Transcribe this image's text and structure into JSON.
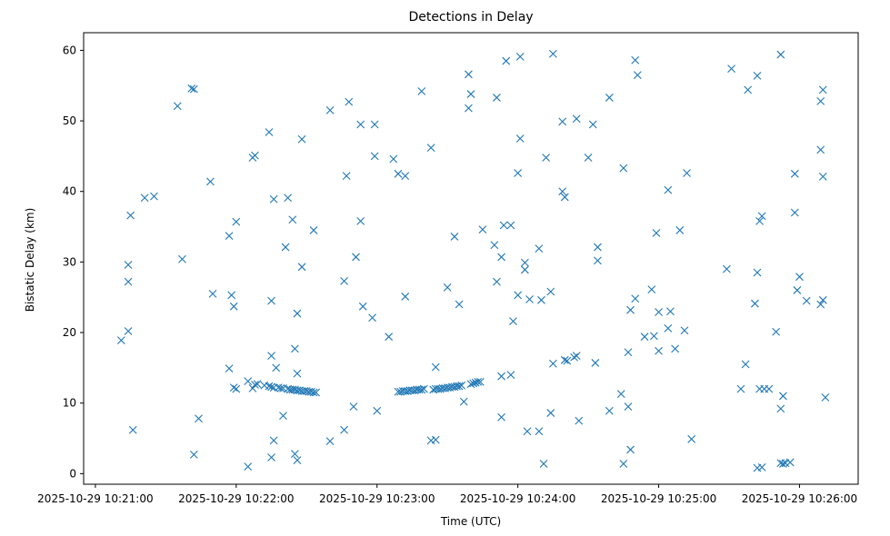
{
  "chart_data": {
    "type": "scatter",
    "title": "Detections in Delay",
    "xlabel": "Time (UTC)",
    "ylabel": "Bistatic Delay (km)",
    "marker": "x",
    "color": "#1f77b4",
    "grid": false,
    "legend": "none",
    "xlim": [
      "2025-10-29 10:20:55",
      "2025-10-29 10:26:25"
    ],
    "ylim": [
      -1.5,
      62.5
    ],
    "x_ticks": [
      "2025-10-29 10:21:00",
      "2025-10-29 10:22:00",
      "2025-10-29 10:23:00",
      "2025-10-29 10:24:00",
      "2025-10-29 10:25:00",
      "2025-10-29 10:26:00"
    ],
    "y_ticks": [
      0,
      10,
      20,
      30,
      40,
      50,
      60
    ],
    "points": [
      [
        "10:21:11",
        18.9
      ],
      [
        "10:21:14",
        29.6
      ],
      [
        "10:21:14",
        27.2
      ],
      [
        "10:21:14",
        20.2
      ],
      [
        "10:21:15",
        36.6
      ],
      [
        "10:21:16",
        6.2
      ],
      [
        "10:21:21",
        39.1
      ],
      [
        "10:21:25",
        39.3
      ],
      [
        "10:21:35",
        52.1
      ],
      [
        "10:21:37",
        30.4
      ],
      [
        "10:21:41",
        54.6
      ],
      [
        "10:21:42",
        54.5
      ],
      [
        "10:21:42",
        2.7
      ],
      [
        "10:21:44",
        7.8
      ],
      [
        "10:21:49",
        41.4
      ],
      [
        "10:21:50",
        25.5
      ],
      [
        "10:21:57",
        14.9
      ],
      [
        "10:21:57",
        33.7
      ],
      [
        "10:21:58",
        25.3
      ],
      [
        "10:21:59",
        23.7
      ],
      [
        "10:21:59",
        12.2
      ],
      [
        "10:22:00",
        35.7
      ],
      [
        "10:22:00",
        12.0
      ],
      [
        "10:22:05",
        1.0
      ],
      [
        "10:22:05",
        13.1
      ],
      [
        "10:22:07",
        44.8
      ],
      [
        "10:22:07",
        12.1
      ],
      [
        "10:22:08",
        45.1
      ],
      [
        "10:22:08",
        12.6
      ],
      [
        "10:22:09",
        12.7
      ],
      [
        "10:22:12",
        12.5
      ],
      [
        "10:22:14",
        48.4
      ],
      [
        "10:22:14",
        12.4
      ],
      [
        "10:22:15",
        24.5
      ],
      [
        "10:22:15",
        16.7
      ],
      [
        "10:22:15",
        2.3
      ],
      [
        "10:22:15",
        12.3
      ],
      [
        "10:22:16",
        38.9
      ],
      [
        "10:22:16",
        4.7
      ],
      [
        "10:22:16",
        12.2
      ],
      [
        "10:22:17",
        15.0
      ],
      [
        "10:22:18",
        12.2
      ],
      [
        "10:22:19",
        12.1
      ],
      [
        "10:22:20",
        8.2
      ],
      [
        "10:22:20",
        12.1
      ],
      [
        "10:22:21",
        32.1
      ],
      [
        "10:22:22",
        39.1
      ],
      [
        "10:22:22",
        12.0
      ],
      [
        "10:22:23",
        11.9
      ],
      [
        "10:22:24",
        36.0
      ],
      [
        "10:22:24",
        11.9
      ],
      [
        "10:22:25",
        17.7
      ],
      [
        "10:22:25",
        2.8
      ],
      [
        "10:22:25",
        11.9
      ],
      [
        "10:22:26",
        22.7
      ],
      [
        "10:22:26",
        14.2
      ],
      [
        "10:22:26",
        1.9
      ],
      [
        "10:22:26",
        11.8
      ],
      [
        "10:22:27",
        11.8
      ],
      [
        "10:22:28",
        47.4
      ],
      [
        "10:22:28",
        29.3
      ],
      [
        "10:22:28",
        11.7
      ],
      [
        "10:22:29",
        11.7
      ],
      [
        "10:22:30",
        11.7
      ],
      [
        "10:22:31",
        11.6
      ],
      [
        "10:22:32",
        11.6
      ],
      [
        "10:22:33",
        34.5
      ],
      [
        "10:22:33",
        11.5
      ],
      [
        "10:22:34",
        11.5
      ],
      [
        "10:22:40",
        4.6
      ],
      [
        "10:22:40",
        51.5
      ],
      [
        "10:22:46",
        27.3
      ],
      [
        "10:22:46",
        6.2
      ],
      [
        "10:22:47",
        42.2
      ],
      [
        "10:22:48",
        52.7
      ],
      [
        "10:22:50",
        9.5
      ],
      [
        "10:22:51",
        30.7
      ],
      [
        "10:22:53",
        35.8
      ],
      [
        "10:22:53",
        49.5
      ],
      [
        "10:22:54",
        23.7
      ],
      [
        "10:22:58",
        22.1
      ],
      [
        "10:22:59",
        49.5
      ],
      [
        "10:22:59",
        45.0
      ],
      [
        "10:23:00",
        8.9
      ],
      [
        "10:23:05",
        19.4
      ],
      [
        "10:23:07",
        44.6
      ],
      [
        "10:23:09",
        42.5
      ],
      [
        "10:23:09",
        11.6
      ],
      [
        "10:23:10",
        11.6
      ],
      [
        "10:23:11",
        11.7
      ],
      [
        "10:23:12",
        42.2
      ],
      [
        "10:23:12",
        25.1
      ],
      [
        "10:23:12",
        11.7
      ],
      [
        "10:23:13",
        11.7
      ],
      [
        "10:23:14",
        11.8
      ],
      [
        "10:23:15",
        11.8
      ],
      [
        "10:23:16",
        11.8
      ],
      [
        "10:23:17",
        11.9
      ],
      [
        "10:23:18",
        11.9
      ],
      [
        "10:23:19",
        54.2
      ],
      [
        "10:23:19",
        11.9
      ],
      [
        "10:23:20",
        12.0
      ],
      [
        "10:23:23",
        46.2
      ],
      [
        "10:23:23",
        4.7
      ],
      [
        "10:23:24",
        11.9
      ],
      [
        "10:23:25",
        4.8
      ],
      [
        "10:23:25",
        15.1
      ],
      [
        "10:23:25",
        12.0
      ],
      [
        "10:23:26",
        12.0
      ],
      [
        "10:23:27",
        12.0
      ],
      [
        "10:23:28",
        12.1
      ],
      [
        "10:23:29",
        12.1
      ],
      [
        "10:23:30",
        26.4
      ],
      [
        "10:23:30",
        12.2
      ],
      [
        "10:23:31",
        12.2
      ],
      [
        "10:23:32",
        12.3
      ],
      [
        "10:23:33",
        33.6
      ],
      [
        "10:23:33",
        12.3
      ],
      [
        "10:23:34",
        12.4
      ],
      [
        "10:23:35",
        24.0
      ],
      [
        "10:23:35",
        12.4
      ],
      [
        "10:23:36",
        12.5
      ],
      [
        "10:23:37",
        10.2
      ],
      [
        "10:23:39",
        51.8
      ],
      [
        "10:23:39",
        56.6
      ],
      [
        "10:23:40",
        53.8
      ],
      [
        "10:23:40",
        12.7
      ],
      [
        "10:23:41",
        12.8
      ],
      [
        "10:23:42",
        12.9
      ],
      [
        "10:23:43",
        13.0
      ],
      [
        "10:23:44",
        13.0
      ],
      [
        "10:23:45",
        34.6
      ],
      [
        "10:23:50",
        32.4
      ],
      [
        "10:23:51",
        27.2
      ],
      [
        "10:23:51",
        53.3
      ],
      [
        "10:23:53",
        30.7
      ],
      [
        "10:23:53",
        13.8
      ],
      [
        "10:23:53",
        8.0
      ],
      [
        "10:23:54",
        35.2
      ],
      [
        "10:23:55",
        58.5
      ],
      [
        "10:23:57",
        35.2
      ],
      [
        "10:23:57",
        14.0
      ],
      [
        "10:23:58",
        21.6
      ],
      [
        "10:24:00",
        42.6
      ],
      [
        "10:24:00",
        25.3
      ],
      [
        "10:24:01",
        59.1
      ],
      [
        "10:24:01",
        47.5
      ],
      [
        "10:24:03",
        29.9
      ],
      [
        "10:24:03",
        28.9
      ],
      [
        "10:24:04",
        6.0
      ],
      [
        "10:24:05",
        24.7
      ],
      [
        "10:24:09",
        31.9
      ],
      [
        "10:24:09",
        6.0
      ],
      [
        "10:24:10",
        24.6
      ],
      [
        "10:24:11",
        1.4
      ],
      [
        "10:24:12",
        44.8
      ],
      [
        "10:24:14",
        25.8
      ],
      [
        "10:24:14",
        8.6
      ],
      [
        "10:24:15",
        59.5
      ],
      [
        "10:24:15",
        15.6
      ],
      [
        "10:24:19",
        49.9
      ],
      [
        "10:24:19",
        40.0
      ],
      [
        "10:24:20",
        39.2
      ],
      [
        "10:24:20",
        16.1
      ],
      [
        "10:24:21",
        16.0
      ],
      [
        "10:24:24",
        16.5
      ],
      [
        "10:24:25",
        50.3
      ],
      [
        "10:24:25",
        16.7
      ],
      [
        "10:24:26",
        7.5
      ],
      [
        "10:24:30",
        44.8
      ],
      [
        "10:24:32",
        49.5
      ],
      [
        "10:24:33",
        15.7
      ],
      [
        "10:24:34",
        32.1
      ],
      [
        "10:24:34",
        30.2
      ],
      [
        "10:24:39",
        53.3
      ],
      [
        "10:24:39",
        8.9
      ],
      [
        "10:24:44",
        11.3
      ],
      [
        "10:24:45",
        43.3
      ],
      [
        "10:24:45",
        1.4
      ],
      [
        "10:24:47",
        9.5
      ],
      [
        "10:24:47",
        17.2
      ],
      [
        "10:24:48",
        23.2
      ],
      [
        "10:24:48",
        3.4
      ],
      [
        "10:24:50",
        58.6
      ],
      [
        "10:24:50",
        24.8
      ],
      [
        "10:24:51",
        56.5
      ],
      [
        "10:24:54",
        19.4
      ],
      [
        "10:24:57",
        26.1
      ],
      [
        "10:24:58",
        19.5
      ],
      [
        "10:24:59",
        34.1
      ],
      [
        "10:25:00",
        22.9
      ],
      [
        "10:25:00",
        17.4
      ],
      [
        "10:25:04",
        40.2
      ],
      [
        "10:25:04",
        20.6
      ],
      [
        "10:25:05",
        23.0
      ],
      [
        "10:25:07",
        17.7
      ],
      [
        "10:25:09",
        34.5
      ],
      [
        "10:25:11",
        20.3
      ],
      [
        "10:25:12",
        42.6
      ],
      [
        "10:25:14",
        4.9
      ],
      [
        "10:25:29",
        29.0
      ],
      [
        "10:25:31",
        57.4
      ],
      [
        "10:25:35",
        12.0
      ],
      [
        "10:25:37",
        15.5
      ],
      [
        "10:25:38",
        54.4
      ],
      [
        "10:25:41",
        24.1
      ],
      [
        "10:25:42",
        56.4
      ],
      [
        "10:25:42",
        28.5
      ],
      [
        "10:25:42",
        0.8
      ],
      [
        "10:25:43",
        12.0
      ],
      [
        "10:25:43",
        35.8
      ],
      [
        "10:25:44",
        36.5
      ],
      [
        "10:25:44",
        0.9
      ],
      [
        "10:25:45",
        12.0
      ],
      [
        "10:25:47",
        12.0
      ],
      [
        "10:25:50",
        20.1
      ],
      [
        "10:25:52",
        59.4
      ],
      [
        "10:25:52",
        9.2
      ],
      [
        "10:25:52",
        1.5
      ],
      [
        "10:25:53",
        11.0
      ],
      [
        "10:25:53",
        1.4
      ],
      [
        "10:25:54",
        1.5
      ],
      [
        "10:25:56",
        1.6
      ],
      [
        "10:25:58",
        42.5
      ],
      [
        "10:25:58",
        37.0
      ],
      [
        "10:25:59",
        26.0
      ],
      [
        "10:26:00",
        27.9
      ],
      [
        "10:26:03",
        24.5
      ],
      [
        "10:26:09",
        52.8
      ],
      [
        "10:26:09",
        45.9
      ],
      [
        "10:26:09",
        24.0
      ],
      [
        "10:26:10",
        54.4
      ],
      [
        "10:26:10",
        42.1
      ],
      [
        "10:26:10",
        24.6
      ],
      [
        "10:26:11",
        10.8
      ]
    ]
  }
}
